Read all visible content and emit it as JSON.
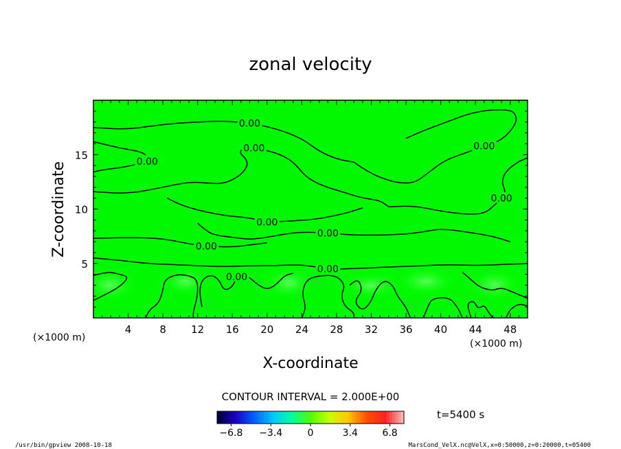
{
  "chart_data": {
    "type": "heatmap",
    "title": "zonal velocity",
    "xlabel": "X-coordinate",
    "ylabel": "Z-coordinate",
    "x_unit_label": "(×1000 m)",
    "y_unit_label": "(×1000 m)",
    "xlim": [
      0,
      50
    ],
    "ylim": [
      0,
      20
    ],
    "x_ticks": [
      4,
      8,
      12,
      16,
      20,
      24,
      28,
      32,
      36,
      40,
      44,
      48
    ],
    "y_ticks": [
      5,
      10,
      15
    ],
    "contour_interval_text": "CONTOUR INTERVAL = 2.000E+00",
    "time_text": "t=5400 s",
    "colorbar": {
      "range": [
        -8,
        8
      ],
      "tick_values": [
        -6.8,
        -3.4,
        0,
        3.4,
        6.8
      ],
      "tick_labels": [
        "−6.8",
        "−3.4",
        "0",
        "3.4",
        "6.8"
      ],
      "colors": [
        "#000030",
        "#1a00c8",
        "#0060ff",
        "#00c8ff",
        "#00ffa0",
        "#50ff00",
        "#c8ff00",
        "#ffc800",
        "#ff5000",
        "#ff2020",
        "#ffc0c0"
      ]
    },
    "contours": [
      {
        "level": 0.0,
        "label": "0.00",
        "points": [
          [
            0,
            16.2
          ],
          [
            3,
            15.6
          ],
          [
            6,
            15.2
          ],
          [
            6.2,
            14.4
          ],
          [
            4,
            13.9
          ],
          [
            1,
            13.6
          ],
          [
            0,
            13.4
          ]
        ]
      },
      {
        "level": 0.0,
        "label": "0.00",
        "points": [
          [
            0,
            17.5
          ],
          [
            4,
            17.3
          ],
          [
            8,
            17.8
          ],
          [
            12,
            18.0
          ],
          [
            15,
            18.1
          ],
          [
            18,
            17.9
          ],
          [
            21,
            17.4
          ],
          [
            24,
            16.5
          ],
          [
            26,
            15.3
          ],
          [
            28,
            14.6
          ],
          [
            30,
            14.3
          ]
        ]
      },
      {
        "level": 0.0,
        "label": "0.00",
        "points": [
          [
            30,
            14.3
          ],
          [
            31.5,
            13.5
          ],
          [
            33,
            12.9
          ],
          [
            35,
            12.4
          ],
          [
            37,
            12.4
          ],
          [
            38.5,
            13.3
          ],
          [
            40.5,
            14.5
          ],
          [
            43,
            15.2
          ],
          [
            45,
            15.8
          ],
          [
            47,
            16.3
          ],
          [
            48.5,
            17.6
          ],
          [
            48.8,
            18.5
          ],
          [
            48,
            19.2
          ],
          [
            44,
            19.0
          ],
          [
            40,
            17.8
          ],
          [
            38,
            17.2
          ],
          [
            36,
            16.5
          ]
        ]
      },
      {
        "level": 0.0,
        "label": "0.00",
        "points": [
          [
            0,
            11.6
          ],
          [
            4,
            11.4
          ],
          [
            8,
            12.0
          ],
          [
            11,
            12.5
          ],
          [
            13,
            12.4
          ],
          [
            15,
            12.3
          ],
          [
            17,
            13.1
          ],
          [
            18,
            14.3
          ],
          [
            16.5,
            15.4
          ],
          [
            18.5,
            15.6
          ],
          [
            21,
            15.2
          ],
          [
            23,
            14.4
          ],
          [
            24.5,
            12.9
          ],
          [
            26.5,
            12.1
          ],
          [
            29,
            11.5
          ],
          [
            31,
            11.0
          ],
          [
            33,
            10.8
          ],
          [
            34,
            10.2
          ]
        ]
      },
      {
        "level": 0.0,
        "label": "0.00",
        "points": [
          [
            34,
            10.2
          ],
          [
            37,
            10.3
          ],
          [
            40,
            9.8
          ],
          [
            43,
            9.5
          ],
          [
            45,
            9.6
          ],
          [
            46,
            10.2
          ],
          [
            47,
            11.0
          ],
          [
            47.5,
            11.5
          ],
          [
            47,
            12.5
          ],
          [
            47.5,
            13.5
          ],
          [
            49,
            14.4
          ],
          [
            50,
            14.7
          ]
        ]
      },
      {
        "level": 0.0,
        "label": "0.00",
        "points": [
          [
            8.5,
            11.0
          ],
          [
            10,
            10.4
          ],
          [
            12,
            9.9
          ],
          [
            15,
            9.4
          ],
          [
            18,
            9.2
          ],
          [
            20,
            8.8
          ],
          [
            23,
            8.9
          ],
          [
            26,
            9.1
          ],
          [
            29,
            9.6
          ],
          [
            31,
            10.1
          ]
        ]
      },
      {
        "level": 0.0,
        "label": "0.00",
        "points": [
          [
            12,
            8.7
          ],
          [
            13,
            8.0
          ],
          [
            14,
            7.6
          ],
          [
            16,
            7.4
          ],
          [
            18,
            7.2
          ],
          [
            20,
            7.4
          ],
          [
            22,
            7.7
          ],
          [
            24,
            7.9
          ],
          [
            27,
            7.8
          ],
          [
            30,
            7.6
          ],
          [
            33,
            7.6
          ],
          [
            36,
            7.7
          ],
          [
            38,
            7.9
          ],
          [
            40,
            8.2
          ],
          [
            43,
            7.9
          ],
          [
            46,
            7.5
          ],
          [
            48,
            7.0
          ]
        ]
      },
      {
        "level": 0.0,
        "label": "0.00",
        "points": [
          [
            0,
            7.3
          ],
          [
            4,
            7.4
          ],
          [
            8,
            7.3
          ],
          [
            11,
            6.8
          ],
          [
            13,
            6.6
          ],
          [
            16,
            6.5
          ],
          [
            18,
            6.7
          ],
          [
            20,
            6.9
          ]
        ]
      },
      {
        "level": 0.0,
        "label": "0.00",
        "points": [
          [
            0,
            5.5
          ],
          [
            3,
            5.3
          ],
          [
            6,
            5.0
          ],
          [
            9,
            4.9
          ],
          [
            12,
            4.8
          ],
          [
            15,
            4.7
          ],
          [
            18,
            4.8
          ],
          [
            21,
            4.8
          ],
          [
            24,
            4.9
          ],
          [
            27,
            4.5
          ],
          [
            29,
            4.5
          ],
          [
            32,
            4.6
          ],
          [
            35,
            4.7
          ],
          [
            38,
            4.8
          ],
          [
            41,
            4.9
          ],
          [
            44,
            4.8
          ],
          [
            47,
            4.9
          ],
          [
            50,
            5.0
          ]
        ]
      },
      {
        "level": 0.0,
        "label": "",
        "points": [
          [
            0,
            1.6
          ],
          [
            1,
            2.0
          ],
          [
            2.5,
            2.6
          ],
          [
            3.5,
            3.2
          ],
          [
            4,
            3.8
          ],
          [
            3,
            4.0
          ],
          [
            2,
            4.2
          ],
          [
            1,
            4.1
          ],
          [
            0,
            3.9
          ]
        ]
      },
      {
        "level": 0.0,
        "label": "",
        "points": [
          [
            6,
            0.0
          ],
          [
            6.5,
            0.8
          ],
          [
            7.5,
            1.3
          ],
          [
            8,
            2.5
          ],
          [
            8.2,
            3.5
          ],
          [
            9.5,
            4.0
          ],
          [
            11,
            3.9
          ],
          [
            12,
            3.5
          ],
          [
            12,
            2.0
          ],
          [
            11.5,
            0.6
          ],
          [
            11.5,
            0.0
          ]
        ]
      },
      {
        "level": 0.0,
        "label": "0.00",
        "points": [
          [
            12.5,
            1.0
          ],
          [
            12.2,
            2.5
          ],
          [
            12.5,
            3.5
          ],
          [
            13.5,
            4.0
          ],
          [
            14.5,
            3.5
          ],
          [
            15,
            2.5
          ],
          [
            16,
            2.8
          ],
          [
            16.5,
            3.8
          ],
          [
            17,
            4.1
          ],
          [
            18,
            3.7
          ],
          [
            19,
            3.0
          ],
          [
            20,
            2.6
          ],
          [
            21,
            3.0
          ],
          [
            22,
            3.9
          ],
          [
            23,
            4.1
          ]
        ]
      },
      {
        "level": 0.0,
        "label": "",
        "points": [
          [
            24,
            0.0
          ],
          [
            24.5,
            1.0
          ],
          [
            24,
            2.2
          ],
          [
            24.5,
            3.5
          ],
          [
            26,
            3.9
          ],
          [
            28,
            3.9
          ],
          [
            29,
            3.0
          ],
          [
            28.5,
            2.0
          ],
          [
            29,
            1.0
          ],
          [
            30,
            0.5
          ],
          [
            30,
            0.0
          ]
        ]
      },
      {
        "level": 0.0,
        "label": "",
        "points": [
          [
            29.5,
            3.0
          ],
          [
            30.5,
            3.6
          ],
          [
            31,
            2.5
          ],
          [
            30,
            1.5
          ],
          [
            31,
            0.6
          ],
          [
            32,
            1.5
          ],
          [
            32.5,
            2.6
          ],
          [
            33.5,
            3.5
          ],
          [
            34.5,
            3.0
          ],
          [
            35,
            2.0
          ],
          [
            36,
            1.0
          ],
          [
            36.5,
            0.0
          ]
        ]
      },
      {
        "level": 0.0,
        "label": "",
        "points": [
          [
            38,
            0.0
          ],
          [
            38.5,
            1.0
          ],
          [
            39,
            1.8
          ],
          [
            41,
            1.9
          ],
          [
            42,
            0.9
          ],
          [
            42.5,
            0.0
          ]
        ]
      },
      {
        "level": 0.0,
        "label": "",
        "points": [
          [
            43.5,
            0.0
          ],
          [
            43,
            1.3
          ],
          [
            43.8,
            1.6
          ],
          [
            44.3,
            0.8
          ],
          [
            45,
            1.2
          ],
          [
            45.5,
            0.5
          ],
          [
            46,
            0.0
          ]
        ]
      },
      {
        "level": 0.0,
        "label": "",
        "points": [
          [
            42.5,
            4.2
          ],
          [
            43.5,
            3.5
          ],
          [
            44.5,
            2.8
          ],
          [
            46,
            2.5
          ],
          [
            47,
            2.8
          ],
          [
            48.5,
            2.3
          ],
          [
            50,
            1.8
          ]
        ]
      },
      {
        "level": 0.0,
        "label": "",
        "points": [
          [
            47.5,
            0.0
          ],
          [
            48,
            0.8
          ],
          [
            49,
            1.3
          ],
          [
            50,
            1.1
          ]
        ]
      }
    ]
  },
  "footer": {
    "left": "/usr/bin/gpview   2008-10-18",
    "right": "MarsCond_VelX.nc@VelX,x=0:50000,z=0:20000,t=05400"
  }
}
